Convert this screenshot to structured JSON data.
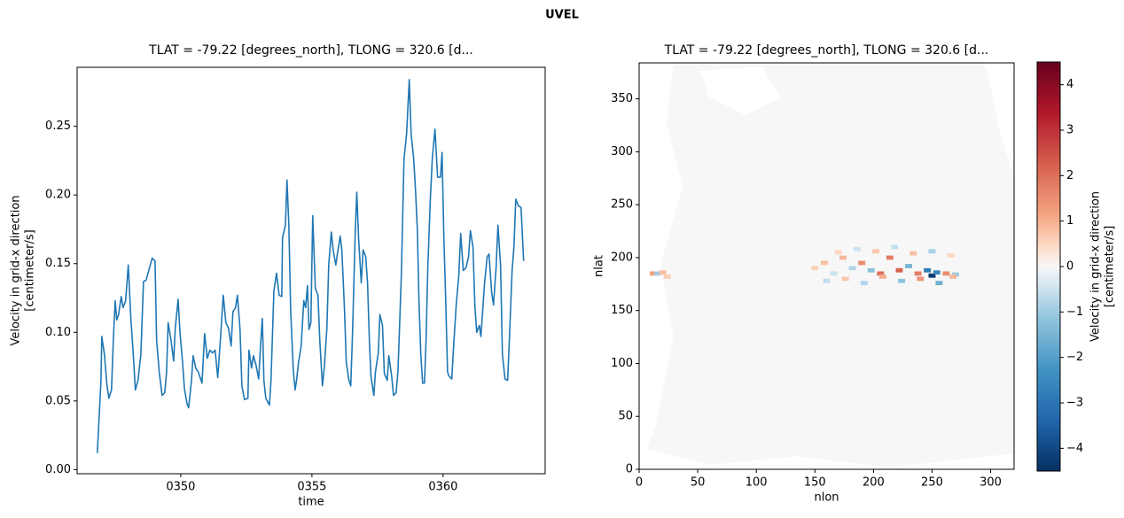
{
  "figure_title": "UVEL",
  "chart_data": [
    {
      "type": "line",
      "title": "TLAT = -79.22 [degrees_north], TLONG = 320.6 [d...",
      "xlabel": "time",
      "ylabel": [
        "Velocity in grid-x direction",
        "[centimeter/s]"
      ],
      "color": "#1f77b4",
      "xlim": [
        346.05,
        363.89
      ],
      "ylim": [
        -0.003,
        0.293
      ],
      "xticks": [
        {
          "value": 350,
          "label": "0350"
        },
        {
          "value": 355,
          "label": "0355"
        },
        {
          "value": 360,
          "label": "0360"
        }
      ],
      "yticks": [
        {
          "value": 0,
          "label": "0.00"
        },
        0.05,
        {
          "value": 0.1,
          "label": "0.10"
        },
        0.15,
        {
          "value": 0.2,
          "label": "0.20"
        },
        0.25
      ],
      "x": [
        346.82,
        346.96,
        346.99,
        347.09,
        347.19,
        347.26,
        347.36,
        347.43,
        347.5,
        347.56,
        347.63,
        347.73,
        347.8,
        347.9,
        348.0,
        348.1,
        348.21,
        348.27,
        348.37,
        348.48,
        348.58,
        348.68,
        348.78,
        348.91,
        349.02,
        349.08,
        349.18,
        349.29,
        349.39,
        349.46,
        349.52,
        349.63,
        349.73,
        349.79,
        349.9,
        349.97,
        350.07,
        350.14,
        350.24,
        350.3,
        350.41,
        350.47,
        350.57,
        350.67,
        350.81,
        350.91,
        351.01,
        351.11,
        351.21,
        351.31,
        351.41,
        351.52,
        351.62,
        351.72,
        351.82,
        351.92,
        351.99,
        352.09,
        352.16,
        352.26,
        352.33,
        352.43,
        352.56,
        352.6,
        352.7,
        352.77,
        352.87,
        352.97,
        353.04,
        353.11,
        353.17,
        353.24,
        353.38,
        353.44,
        353.55,
        353.65,
        353.75,
        353.85,
        353.88,
        353.99,
        354.05,
        354.12,
        354.19,
        354.29,
        354.36,
        354.42,
        354.49,
        354.59,
        354.69,
        354.76,
        354.83,
        354.89,
        354.96,
        355.03,
        355.13,
        355.23,
        355.3,
        355.4,
        355.47,
        355.57,
        355.64,
        355.74,
        355.81,
        355.91,
        355.97,
        356.08,
        356.14,
        356.24,
        356.31,
        356.41,
        356.48,
        356.55,
        356.65,
        356.71,
        356.78,
        356.88,
        356.95,
        357.05,
        357.12,
        357.19,
        357.25,
        357.36,
        357.42,
        357.53,
        357.59,
        357.69,
        357.76,
        357.87,
        357.93,
        358.04,
        358.11,
        358.21,
        358.28,
        358.34,
        358.41,
        358.51,
        358.61,
        358.71,
        358.78,
        358.88,
        358.95,
        359.02,
        359.08,
        359.15,
        359.22,
        359.29,
        359.35,
        359.42,
        359.52,
        359.59,
        359.69,
        359.79,
        359.9,
        359.96,
        360.03,
        360.1,
        360.17,
        360.23,
        360.33,
        360.4,
        360.5,
        360.6,
        360.67,
        360.77,
        360.87,
        360.97,
        361.04,
        361.14,
        361.21,
        361.28,
        361.38,
        361.44,
        361.51,
        361.58,
        361.68,
        361.75,
        361.85,
        361.92,
        362.02,
        362.09,
        362.19,
        362.26,
        362.36,
        362.46,
        362.53,
        362.63,
        362.7,
        362.77,
        362.87,
        362.97,
        363.07
      ],
      "values": [
        0.012,
        0.065,
        0.097,
        0.084,
        0.061,
        0.052,
        0.058,
        0.094,
        0.123,
        0.109,
        0.113,
        0.126,
        0.118,
        0.123,
        0.149,
        0.11,
        0.078,
        0.058,
        0.065,
        0.084,
        0.137,
        0.138,
        0.145,
        0.154,
        0.152,
        0.094,
        0.071,
        0.054,
        0.056,
        0.071,
        0.107,
        0.094,
        0.079,
        0.103,
        0.124,
        0.1,
        0.078,
        0.059,
        0.048,
        0.045,
        0.065,
        0.083,
        0.074,
        0.071,
        0.063,
        0.099,
        0.081,
        0.087,
        0.085,
        0.087,
        0.067,
        0.097,
        0.127,
        0.107,
        0.103,
        0.09,
        0.115,
        0.118,
        0.127,
        0.102,
        0.061,
        0.051,
        0.052,
        0.087,
        0.074,
        0.083,
        0.076,
        0.066,
        0.09,
        0.11,
        0.065,
        0.052,
        0.047,
        0.065,
        0.13,
        0.143,
        0.127,
        0.126,
        0.169,
        0.178,
        0.211,
        0.178,
        0.116,
        0.072,
        0.058,
        0.066,
        0.078,
        0.09,
        0.123,
        0.118,
        0.134,
        0.102,
        0.107,
        0.185,
        0.132,
        0.127,
        0.094,
        0.061,
        0.074,
        0.103,
        0.149,
        0.173,
        0.16,
        0.149,
        0.157,
        0.17,
        0.16,
        0.117,
        0.078,
        0.065,
        0.061,
        0.101,
        0.172,
        0.202,
        0.168,
        0.136,
        0.16,
        0.155,
        0.136,
        0.094,
        0.068,
        0.054,
        0.071,
        0.085,
        0.113,
        0.105,
        0.07,
        0.065,
        0.083,
        0.068,
        0.054,
        0.056,
        0.072,
        0.104,
        0.143,
        0.226,
        0.245,
        0.284,
        0.245,
        0.226,
        0.203,
        0.174,
        0.123,
        0.084,
        0.063,
        0.063,
        0.094,
        0.149,
        0.2,
        0.227,
        0.248,
        0.213,
        0.213,
        0.231,
        0.168,
        0.123,
        0.071,
        0.068,
        0.066,
        0.09,
        0.12,
        0.142,
        0.172,
        0.145,
        0.147,
        0.155,
        0.174,
        0.162,
        0.12,
        0.1,
        0.105,
        0.097,
        0.116,
        0.136,
        0.155,
        0.157,
        0.129,
        0.12,
        0.147,
        0.178,
        0.149,
        0.084,
        0.066,
        0.065,
        0.097,
        0.145,
        0.162,
        0.197,
        0.192,
        0.191,
        0.152
      ]
    },
    {
      "type": "heatmap",
      "title": "TLAT = -79.22 [degrees_north], TLONG = 320.6 [d...",
      "xlabel": "nlon",
      "ylabel": "nlat",
      "cmap": "RdBu_r",
      "xlim": [
        0,
        320
      ],
      "ylim": [
        0,
        384
      ],
      "xticks": [
        0,
        50,
        100,
        150,
        200,
        250,
        300
      ],
      "yticks": [
        0,
        50,
        100,
        150,
        200,
        250,
        300,
        350
      ],
      "clim": [
        -4.5,
        4.5
      ],
      "cticks": [
        {
          "value": -4,
          "label": "−4"
        },
        {
          "value": -3,
          "label": "−3"
        },
        {
          "value": -2,
          "label": "−2"
        },
        {
          "value": -1,
          "label": "−1"
        },
        0,
        1,
        2,
        3,
        4
      ],
      "colorbar_label": [
        "Velocity in grid-x direction",
        "[centimeter/s]"
      ],
      "cells": {
        "x": [
          12,
          16,
          20,
          24,
          150,
          158,
          166,
          174,
          182,
          190,
          198,
          206,
          214,
          222,
          230,
          238,
          246,
          250,
          254,
          262,
          270,
          160,
          176,
          192,
          208,
          224,
          240,
          256,
          268,
          170,
          186,
          202,
          218,
          234,
          250,
          266
        ],
        "y": [
          185,
          185,
          186,
          182,
          190,
          195,
          185,
          200,
          190,
          195,
          188,
          185,
          200,
          188,
          192,
          185,
          188,
          183,
          186,
          185,
          184,
          178,
          180,
          176,
          182,
          178,
          180,
          176,
          182,
          205,
          208,
          206,
          210,
          204,
          206,
          202
        ],
        "values": [
          1.2,
          -1,
          0.8,
          0.6,
          0.6,
          0.8,
          -0.5,
          0.9,
          -0.8,
          1.5,
          -1.2,
          2.0,
          1.8,
          2.2,
          -1.5,
          1.8,
          -2.8,
          -4.3,
          -2.5,
          1.5,
          -1,
          -0.6,
          0.7,
          -0.8,
          1.0,
          -1.2,
          1.4,
          -1.6,
          0.9,
          0.5,
          -0.5,
          0.7,
          -0.6,
          0.8,
          -0.9,
          0.5
        ]
      }
    }
  ]
}
